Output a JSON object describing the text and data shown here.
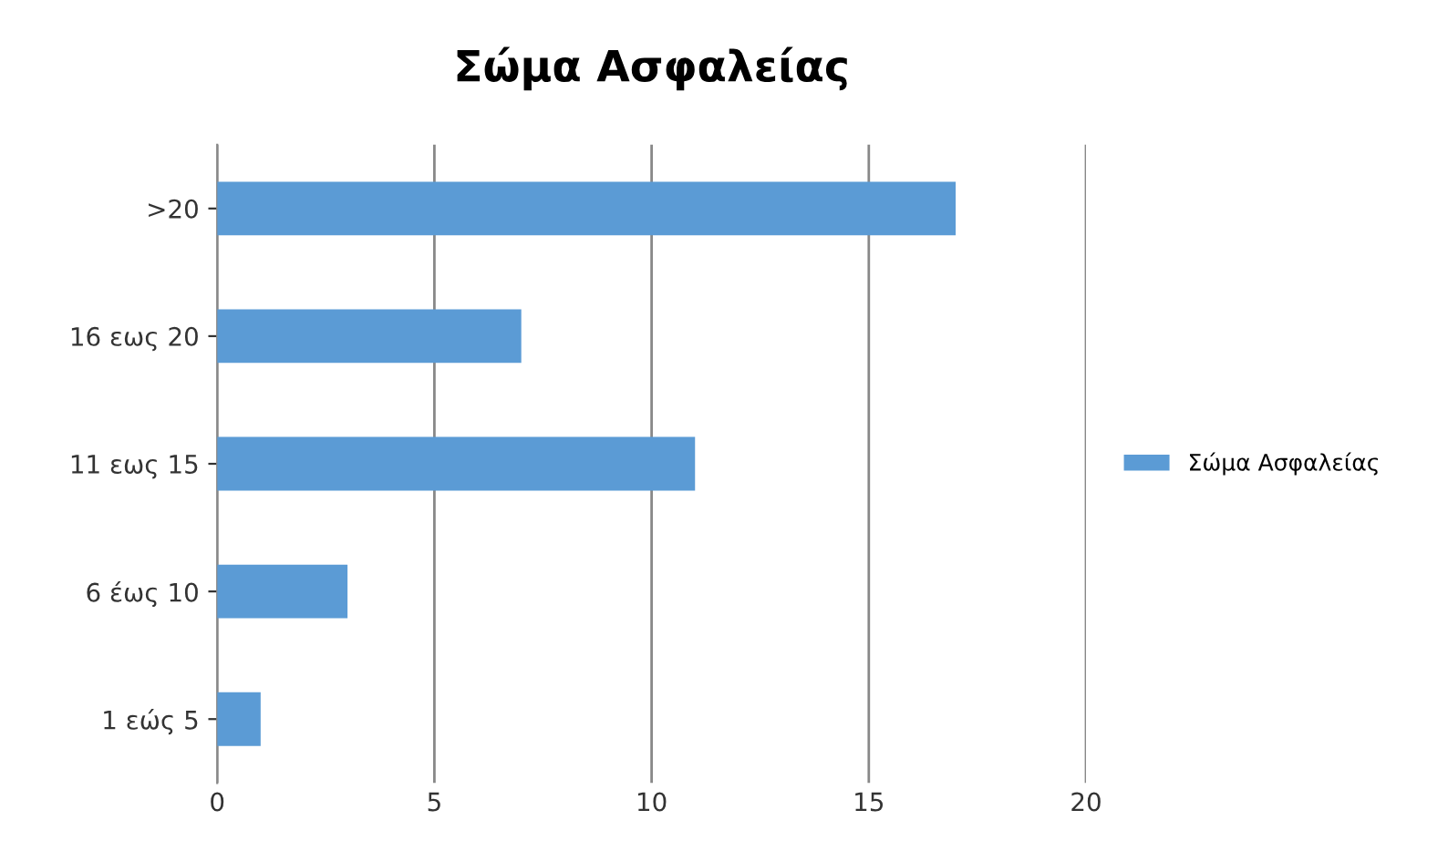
{
  "chart_data": {
    "type": "bar",
    "orientation": "horizontal",
    "title": "Σώμα Ασφαλείας",
    "categories": [
      ">20",
      "16 εως 20",
      "11 εως 15",
      "6 έως 10",
      "1 εώς 5"
    ],
    "series": [
      {
        "name": "Σώμα Ασφαλείας",
        "color": "#5b9bd5",
        "values": [
          17,
          7,
          11,
          3,
          1
        ]
      }
    ],
    "xlim": [
      0,
      20
    ],
    "xticks": [
      0,
      5,
      10,
      15,
      20
    ],
    "grid": "x",
    "legend": "right"
  }
}
